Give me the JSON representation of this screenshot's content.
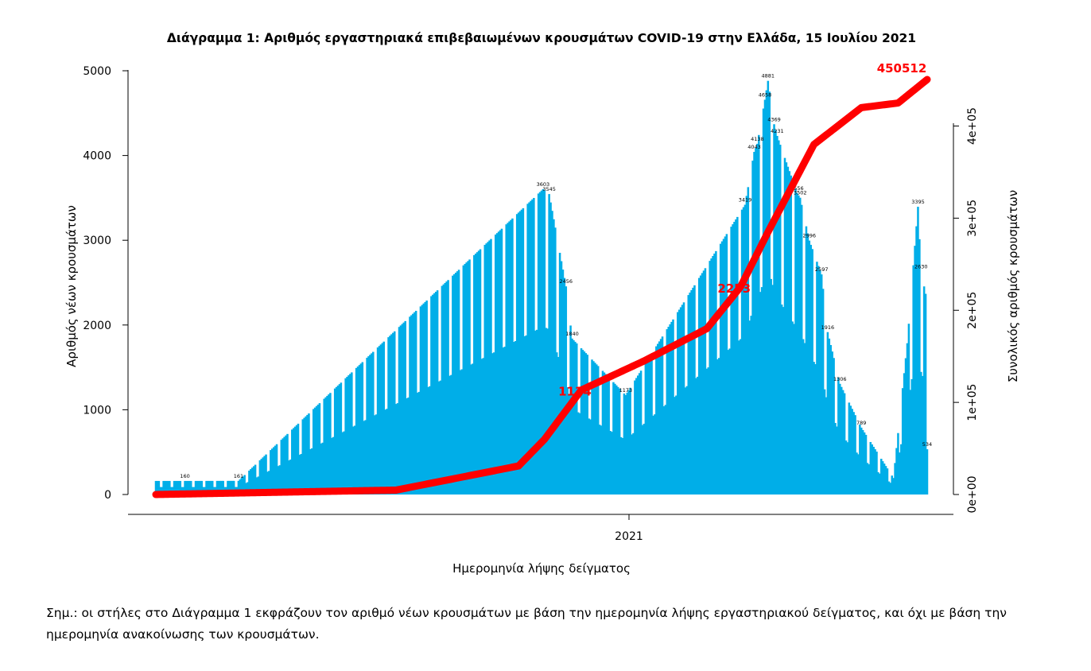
{
  "note": "Σημ.:  οι στήλες στο Διάγραμμα 1 εκφράζουν τον αριθμό νέων κρουσμάτων με βάση την ημερομηνία λήψης εργαστηριακού δείγματος, και όχι με βάση την ημερομηνία ανακοίνωσης των κρουσμάτων.",
  "colors": {
    "bars": "#00aee8",
    "cumulative_line": "#ff0000"
  },
  "chart_data": {
    "type": "bar",
    "title": "Διάγραμμα 1: Αριθμός εργαστηριακά επιβεβαιωμένων κρουσμάτων COVID-19 στην Ελλάδα, 15 Ιουλίου 2021",
    "xlabel": "Ημερομηνία λήψης δείγματος",
    "ylabel": "Αριθμός νέων κρουσμάτων",
    "ylabel_right": "Συνολικός αριθμός κρουσμάτων",
    "x_tick_labels": [
      "2021"
    ],
    "y_tick_labels": [
      "0",
      "1000",
      "2000",
      "3000",
      "4000",
      "5000"
    ],
    "y2_tick_labels": [
      "0e+00",
      "1e+05",
      "2e+05",
      "3e+05",
      "4e+05"
    ],
    "ylim": [
      0,
      5000
    ],
    "y2lim": [
      0,
      450512
    ],
    "grid": false,
    "legend": "none",
    "series": [
      {
        "type": "bar",
        "description": "new cases per sampling day (approximate, read from the chart)",
        "key_points": [
          {
            "x": "2020-03-16",
            "y": 160
          },
          {
            "x": "2020-04-20",
            "y": 161
          },
          {
            "x": "2020-11-05",
            "y": 3603
          },
          {
            "x": "2020-11-09",
            "y": 3545
          },
          {
            "x": "2020-11-20",
            "y": 2456
          },
          {
            "x": "2020-11-24",
            "y": 1840
          },
          {
            "x": "2020-12-29",
            "y": 1173
          },
          {
            "x": "2021-03-17",
            "y": 3419
          },
          {
            "x": "2021-03-23",
            "y": 4043
          },
          {
            "x": "2021-03-25",
            "y": 4138
          },
          {
            "x": "2021-03-30",
            "y": 4658
          },
          {
            "x": "2021-04-01",
            "y": 4881
          },
          {
            "x": "2021-04-05",
            "y": 4369
          },
          {
            "x": "2021-04-07",
            "y": 4231
          },
          {
            "x": "2021-04-20",
            "y": 3556
          },
          {
            "x": "2021-04-22",
            "y": 3502
          },
          {
            "x": "2021-04-28",
            "y": 2996
          },
          {
            "x": "2021-05-06",
            "y": 2597
          },
          {
            "x": "2021-05-10",
            "y": 1916
          },
          {
            "x": "2021-05-18",
            "y": 1306
          },
          {
            "x": "2021-06-01",
            "y": 789
          },
          {
            "x": "2021-06-22",
            "y": 195
          },
          {
            "x": "2021-07-01",
            "y": 1785
          },
          {
            "x": "2021-07-08",
            "y": 3395
          },
          {
            "x": "2021-07-10",
            "y": 2630
          },
          {
            "x": "2021-07-13",
            "y": 2368
          },
          {
            "x": "2021-07-14",
            "y": 534
          }
        ]
      },
      {
        "type": "line",
        "axis": "right",
        "description": "cumulative cases (approximate, read from the chart)",
        "key_points": [
          {
            "x": "2020-02-26",
            "y": 0
          },
          {
            "x": "2020-08-01",
            "y": 4800
          },
          {
            "x": "2020-10-20",
            "y": 31000
          },
          {
            "x": "2020-11-06",
            "y": 60000
          },
          {
            "x": "2020-11-30",
            "y": 113400
          },
          {
            "x": "2021-01-10",
            "y": 145000
          },
          {
            "x": "2021-02-20",
            "y": 180000
          },
          {
            "x": "2021-03-14",
            "y": 225300
          },
          {
            "x": "2021-04-01",
            "y": 285000
          },
          {
            "x": "2021-05-01",
            "y": 380000
          },
          {
            "x": "2021-06-01",
            "y": 420000
          },
          {
            "x": "2021-06-25",
            "y": 425000
          },
          {
            "x": "2021-07-14",
            "y": 450512
          }
        ]
      }
    ],
    "annotations": [
      "1134",
      "2253",
      "450512"
    ],
    "bar_labels": [
      {
        "x": "2020-03-16",
        "text": "160"
      },
      {
        "x": "2020-04-20",
        "text": "161"
      },
      {
        "x": "2020-11-05",
        "text": "3603"
      },
      {
        "x": "2020-11-09",
        "text": "3545"
      },
      {
        "x": "2020-11-20",
        "text": "2456"
      },
      {
        "x": "2020-11-24",
        "text": "1840"
      },
      {
        "x": "2020-12-29",
        "text": "1173"
      },
      {
        "x": "2021-03-17",
        "text": "3419"
      },
      {
        "x": "2021-03-23",
        "text": "4043"
      },
      {
        "x": "2021-03-25",
        "text": "4138"
      },
      {
        "x": "2021-03-30",
        "text": "4658"
      },
      {
        "x": "2021-04-01",
        "text": "4881"
      },
      {
        "x": "2021-04-05",
        "text": "4369"
      },
      {
        "x": "2021-04-07",
        "text": "4231"
      },
      {
        "x": "2021-04-20",
        "text": "3556"
      },
      {
        "x": "2021-04-22",
        "text": "3502"
      },
      {
        "x": "2021-04-28",
        "text": "2996"
      },
      {
        "x": "2021-05-06",
        "text": "2597"
      },
      {
        "x": "2021-05-10",
        "text": "1916"
      },
      {
        "x": "2021-05-18",
        "text": "1306"
      },
      {
        "x": "2021-06-01",
        "text": "789"
      },
      {
        "x": "2021-07-08",
        "text": "3395"
      },
      {
        "x": "2021-07-10",
        "text": "2630"
      },
      {
        "x": "2021-07-14",
        "text": "534"
      }
    ]
  }
}
